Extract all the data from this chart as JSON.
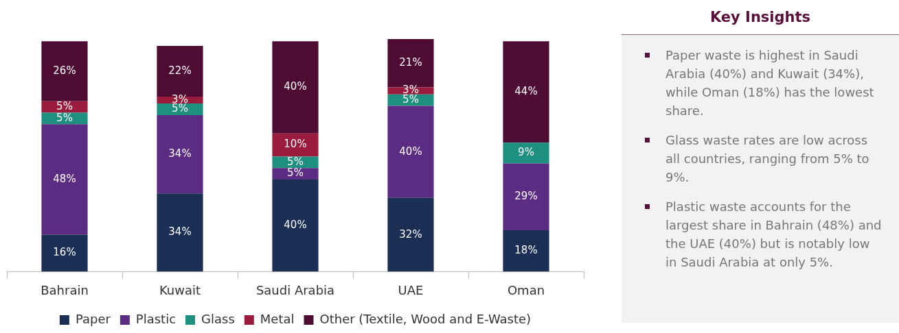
{
  "chart_data": [
    {
      "type": "bar",
      "stacked": true,
      "categories": [
        "Bahrain",
        "Kuwait",
        "Saudi Arabia",
        "UAE",
        "Oman"
      ],
      "series": [
        {
          "name": "Paper",
          "color": "#1b2f55",
          "values": [
            16,
            34,
            40,
            32,
            18
          ],
          "value_labels": [
            "16%",
            "34%",
            "40%",
            "32%",
            "18%"
          ]
        },
        {
          "name": "Plastic",
          "color": "#5b2d82",
          "values": [
            48,
            34,
            5,
            40,
            29
          ],
          "value_labels": [
            "48%",
            "34%",
            "5%",
            "40%",
            "29%"
          ]
        },
        {
          "name": "Glass",
          "color": "#1e9080",
          "values": [
            5,
            5,
            5,
            5,
            9
          ],
          "value_labels": [
            "5%",
            "5%",
            "5%",
            "5%",
            "9%"
          ]
        },
        {
          "name": "Metal",
          "color": "#9b1b3c",
          "values": [
            5,
            3,
            10,
            3,
            null
          ],
          "value_labels": [
            "5%",
            "3%",
            "10%",
            "3%",
            null
          ]
        },
        {
          "name": "Other (Textile, Wood and E-Waste)",
          "color": "#4e0c33",
          "values": [
            26,
            22,
            40,
            21,
            44
          ],
          "value_labels": [
            "26%",
            "22%",
            "40%",
            "21%",
            "44%"
          ]
        }
      ],
      "legend": "bottom",
      "grid": false,
      "tick_labels": "x"
    },
    {
      "type": "other",
      "title": "Key Insights",
      "annotations": [
        "Paper waste is highest in Saudi Arabia (40%) and Kuwait (34%), while Oman (18%) has the lowest share.",
        "Glass waste rates are low across all countries, ranging from 5% to 9%.",
        "Plastic waste accounts for the largest share in Bahrain (48%) and the UAE (40%) but is notably low in Saudi Arabia at only 5%."
      ]
    }
  ]
}
